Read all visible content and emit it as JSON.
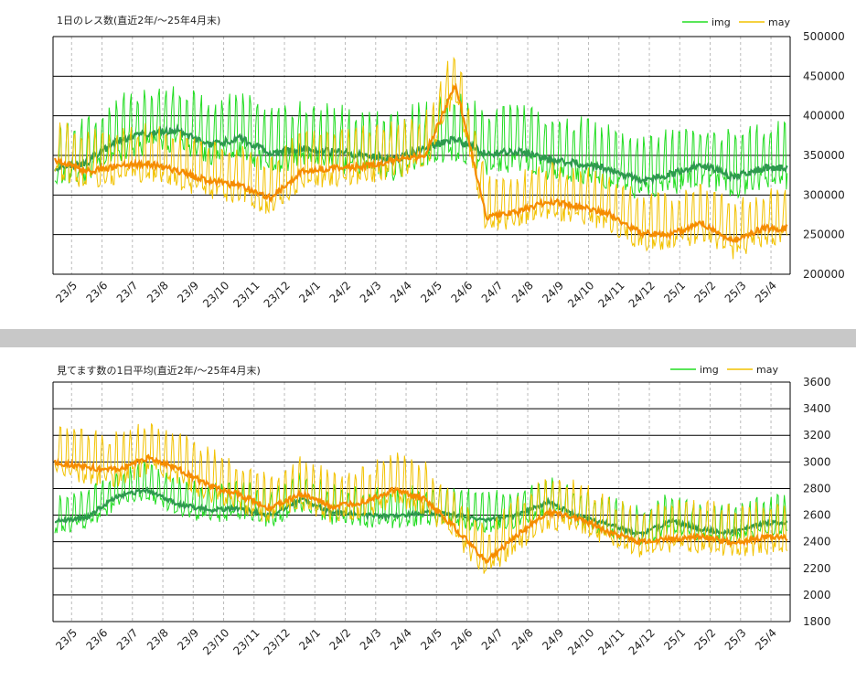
{
  "chart_data": [
    {
      "type": "line",
      "title": "1日のレス数(直近2年/～25年4月末)",
      "legend": [
        "img",
        "may"
      ],
      "legend_position": "top-right",
      "colors": {
        "img_daily": "#22dd22",
        "img_avg": "#2e9a4e",
        "may_daily": "#f2c200",
        "may_avg": "#f58c00"
      },
      "ylim": [
        200000,
        500000
      ],
      "yticks": [
        "200000",
        "250000",
        "300000",
        "350000",
        "400000",
        "450000",
        "500000"
      ],
      "x_ticks": [
        "23/5",
        "23/6",
        "23/7",
        "23/8",
        "23/9",
        "23/10",
        "23/11",
        "23/12",
        "24/1",
        "24/2",
        "24/3",
        "24/4",
        "24/5",
        "24/6",
        "24/7",
        "24/8",
        "24/9",
        "24/10",
        "24/11",
        "24/12",
        "25/1",
        "25/2",
        "25/3",
        "25/4"
      ],
      "grid": true,
      "series": [
        {
          "name": "img",
          "kind": "7-day average",
          "months": [
            "23/5",
            "23/6",
            "23/7",
            "23/8",
            "23/9",
            "23/10",
            "23/11",
            "23/12",
            "24/1",
            "24/2",
            "24/3",
            "24/4",
            "24/5",
            "24/6",
            "24/7",
            "24/8",
            "24/9",
            "24/10",
            "24/11",
            "24/12",
            "25/1",
            "25/2",
            "25/3",
            "25/4"
          ],
          "values": [
            335000,
            340000,
            368000,
            378000,
            382000,
            362000,
            372000,
            352000,
            358000,
            355000,
            350000,
            345000,
            360000,
            370000,
            352000,
            355000,
            345000,
            340000,
            332000,
            318000,
            326000,
            338000,
            322000,
            334000
          ],
          "daily_amplitude": 42000
        },
        {
          "name": "may",
          "kind": "7-day average",
          "months": [
            "23/5",
            "23/6",
            "23/7",
            "23/8",
            "23/9",
            "23/10",
            "23/11",
            "23/12",
            "24/1",
            "24/2",
            "24/3",
            "24/4",
            "24/5",
            "24/6",
            "24/7",
            "24/8",
            "24/9",
            "24/10",
            "24/11",
            "24/12",
            "25/1",
            "25/2",
            "25/3",
            "25/4"
          ],
          "values": [
            345000,
            330000,
            336000,
            340000,
            330000,
            318000,
            312000,
            296000,
            330000,
            334000,
            336000,
            344000,
            350000,
            440000,
            272000,
            278000,
            292000,
            286000,
            276000,
            252000,
            250000,
            265000,
            242000,
            258000
          ],
          "daily_amplitude": 36000
        }
      ]
    },
    {
      "type": "line",
      "title": "見てます数の1日平均(直近2年/～25年4月末)",
      "legend": [
        "img",
        "may"
      ],
      "legend_position": "top-right",
      "colors": {
        "img_daily": "#22dd22",
        "img_avg": "#2e9a4e",
        "may_daily": "#f2c200",
        "may_avg": "#f58c00"
      },
      "ylim": [
        1800,
        3600
      ],
      "yticks": [
        "1800",
        "2000",
        "2200",
        "2400",
        "2600",
        "2800",
        "3000",
        "3200",
        "3400",
        "3600"
      ],
      "x_ticks": [
        "23/5",
        "23/6",
        "23/7",
        "23/8",
        "23/9",
        "23/10",
        "23/11",
        "23/12",
        "24/1",
        "24/2",
        "24/3",
        "24/4",
        "24/5",
        "24/6",
        "24/7",
        "24/8",
        "24/9",
        "24/10",
        "24/11",
        "24/12",
        "25/1",
        "25/2",
        "25/3",
        "25/4"
      ],
      "grid": true,
      "series": [
        {
          "name": "img",
          "kind": "7-day average",
          "months": [
            "23/5",
            "23/6",
            "23/7",
            "23/8",
            "23/9",
            "23/10",
            "23/11",
            "23/12",
            "24/1",
            "24/2",
            "24/3",
            "24/4",
            "24/5",
            "24/6",
            "24/7",
            "24/8",
            "24/9",
            "24/10",
            "24/11",
            "24/12",
            "25/1",
            "25/2",
            "25/3",
            "25/4"
          ],
          "values": [
            2560,
            2580,
            2740,
            2790,
            2680,
            2640,
            2650,
            2600,
            2720,
            2620,
            2600,
            2590,
            2620,
            2600,
            2560,
            2600,
            2700,
            2590,
            2530,
            2450,
            2560,
            2490,
            2470,
            2540
          ],
          "daily_amplitude": 150
        },
        {
          "name": "may",
          "kind": "7-day average",
          "months": [
            "23/5",
            "23/6",
            "23/7",
            "23/8",
            "23/9",
            "23/10",
            "23/11",
            "23/12",
            "24/1",
            "24/2",
            "24/3",
            "24/4",
            "24/5",
            "24/6",
            "24/7",
            "24/8",
            "24/9",
            "24/10",
            "24/11",
            "24/12",
            "25/1",
            "25/2",
            "25/3",
            "25/4"
          ],
          "values": [
            3000,
            2960,
            2940,
            3030,
            2950,
            2820,
            2750,
            2650,
            2760,
            2660,
            2700,
            2790,
            2720,
            2500,
            2250,
            2450,
            2620,
            2580,
            2470,
            2400,
            2420,
            2440,
            2390,
            2430
          ],
          "daily_amplitude": 200
        }
      ]
    }
  ]
}
